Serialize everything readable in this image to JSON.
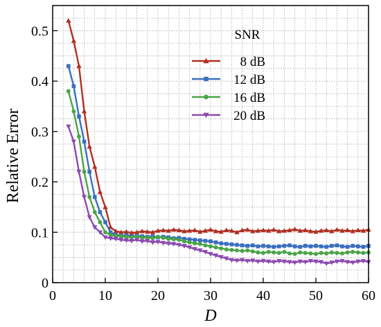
{
  "chart_data": {
    "type": "line",
    "xlabel": "D",
    "ylabel": "Relative Error",
    "xlim": [
      0,
      60
    ],
    "ylim": [
      0,
      0.55
    ],
    "xticks": [
      0,
      10,
      20,
      30,
      40,
      50,
      60
    ],
    "xtick_labels": [
      "0",
      "10",
      "20",
      "30",
      "40",
      "50",
      "60"
    ],
    "yticks": [
      0,
      0.1,
      0.2,
      0.3,
      0.4,
      0.5
    ],
    "ytick_labels": [
      "0",
      "0.1",
      "0.2",
      "0.3",
      "0.4",
      "0.5"
    ],
    "grid": true,
    "legend": {
      "title": "SNR",
      "placement": "top-right"
    },
    "x": [
      3,
      4,
      5,
      6,
      7,
      8,
      9,
      10,
      11,
      12,
      13,
      14,
      15,
      16,
      17,
      18,
      19,
      20,
      21,
      22,
      23,
      24,
      25,
      26,
      27,
      28,
      29,
      30,
      31,
      32,
      33,
      34,
      35,
      36,
      37,
      38,
      39,
      40,
      41,
      42,
      43,
      44,
      45,
      46,
      47,
      48,
      49,
      50,
      51,
      52,
      53,
      54,
      55,
      56,
      57,
      58,
      59,
      60
    ],
    "series": [
      {
        "name": "8 dB",
        "color": "#b03022",
        "marker": "triangle-up",
        "values": [
          0.52,
          0.48,
          0.43,
          0.34,
          0.27,
          0.23,
          0.18,
          0.15,
          0.11,
          0.102,
          0.1,
          0.101,
          0.099,
          0.1,
          0.102,
          0.101,
          0.1,
          0.103,
          0.104,
          0.103,
          0.105,
          0.104,
          0.102,
          0.103,
          0.104,
          0.101,
          0.103,
          0.105,
          0.102,
          0.101,
          0.104,
          0.103,
          0.1,
          0.104,
          0.105,
          0.102,
          0.103,
          0.104,
          0.103,
          0.105,
          0.102,
          0.103,
          0.104,
          0.106,
          0.103,
          0.104,
          0.102,
          0.101,
          0.103,
          0.104,
          0.102,
          0.105,
          0.103,
          0.104,
          0.102,
          0.104,
          0.103,
          0.105
        ]
      },
      {
        "name": "12 dB",
        "color": "#3a6fc0",
        "marker": "square",
        "values": [
          0.43,
          0.39,
          0.33,
          0.28,
          0.22,
          0.17,
          0.14,
          0.12,
          0.1,
          0.095,
          0.093,
          0.094,
          0.092,
          0.093,
          0.092,
          0.091,
          0.092,
          0.09,
          0.091,
          0.09,
          0.088,
          0.089,
          0.087,
          0.086,
          0.085,
          0.084,
          0.083,
          0.082,
          0.08,
          0.078,
          0.077,
          0.076,
          0.075,
          0.074,
          0.073,
          0.074,
          0.072,
          0.073,
          0.072,
          0.071,
          0.072,
          0.073,
          0.074,
          0.072,
          0.071,
          0.073,
          0.072,
          0.073,
          0.072,
          0.071,
          0.073,
          0.074,
          0.072,
          0.071,
          0.073,
          0.072,
          0.071,
          0.073
        ]
      },
      {
        "name": "16 dB",
        "color": "#4aa446",
        "marker": "circle",
        "values": [
          0.38,
          0.34,
          0.29,
          0.22,
          0.17,
          0.14,
          0.12,
          0.1,
          0.095,
          0.093,
          0.092,
          0.091,
          0.09,
          0.092,
          0.089,
          0.09,
          0.088,
          0.091,
          0.089,
          0.087,
          0.086,
          0.085,
          0.082,
          0.08,
          0.078,
          0.077,
          0.074,
          0.072,
          0.07,
          0.068,
          0.066,
          0.065,
          0.064,
          0.063,
          0.064,
          0.062,
          0.06,
          0.059,
          0.061,
          0.06,
          0.059,
          0.061,
          0.058,
          0.057,
          0.06,
          0.059,
          0.058,
          0.057,
          0.059,
          0.058,
          0.06,
          0.059,
          0.058,
          0.06,
          0.061,
          0.06,
          0.059,
          0.06
        ]
      },
      {
        "name": "20 dB",
        "color": "#8d4bb0",
        "marker": "triangle-down",
        "values": [
          0.31,
          0.28,
          0.22,
          0.17,
          0.13,
          0.11,
          0.1,
          0.09,
          0.088,
          0.087,
          0.085,
          0.084,
          0.083,
          0.085,
          0.082,
          0.083,
          0.08,
          0.081,
          0.079,
          0.078,
          0.077,
          0.075,
          0.073,
          0.07,
          0.067,
          0.064,
          0.061,
          0.057,
          0.054,
          0.051,
          0.048,
          0.045,
          0.044,
          0.045,
          0.043,
          0.044,
          0.042,
          0.043,
          0.042,
          0.041,
          0.043,
          0.042,
          0.041,
          0.04,
          0.042,
          0.041,
          0.043,
          0.042,
          0.041,
          0.038,
          0.04,
          0.042,
          0.043,
          0.041,
          0.04,
          0.042,
          0.043,
          0.041
        ]
      }
    ]
  }
}
